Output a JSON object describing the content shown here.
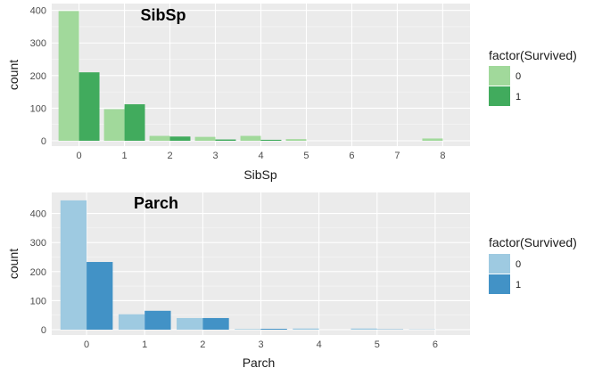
{
  "chart_data": [
    {
      "type": "bar",
      "title": "SibSp",
      "xlabel": "SibSp",
      "ylabel": "count",
      "categories": [
        "0",
        "1",
        "2",
        "3",
        "4",
        "5",
        "6",
        "7",
        "8"
      ],
      "yticks": [
        0,
        100,
        200,
        300,
        400
      ],
      "ylim": [
        0,
        410
      ],
      "series": [
        {
          "name": "0",
          "color": "#a1d99b",
          "values": [
            398,
            97,
            15,
            12,
            15,
            5,
            0,
            0,
            7
          ]
        },
        {
          "name": "1",
          "color": "#41ab5d",
          "values": [
            210,
            112,
            13,
            4,
            3,
            0,
            0,
            0,
            0
          ]
        }
      ],
      "legend": {
        "title": "factor(Survived)",
        "position": "right"
      },
      "grid": true
    },
    {
      "type": "bar",
      "title": "Parch",
      "xlabel": "Parch",
      "ylabel": "count",
      "categories": [
        "0",
        "1",
        "2",
        "3",
        "4",
        "5",
        "6"
      ],
      "yticks": [
        0,
        100,
        200,
        300,
        400
      ],
      "ylim": [
        0,
        460
      ],
      "series": [
        {
          "name": "0",
          "color": "#9ecae1",
          "values": [
            445,
            53,
            40,
            2,
            4,
            4,
            1
          ]
        },
        {
          "name": "1",
          "color": "#4292c6",
          "values": [
            233,
            65,
            40,
            3,
            0,
            1,
            0
          ]
        }
      ],
      "legend": {
        "title": "factor(Survived)",
        "position": "right"
      },
      "grid": true
    }
  ]
}
